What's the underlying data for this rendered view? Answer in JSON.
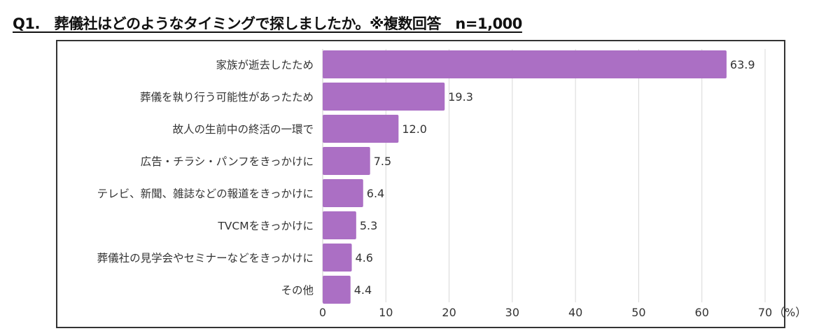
{
  "title": "Q1.　葬儀社はどのようなタイミングで探しましたか。※複数回答　n=1,000",
  "chart_data": {
    "type": "bar",
    "orientation": "horizontal",
    "categories": [
      "家族が逝去したため",
      "葬儀を執り行う可能性があったため",
      "故人の生前中の終活の一環で",
      "広告・チラシ・パンフをきっかけに",
      "テレビ、新聞、雑誌などの報道をきっかけに",
      "TVCMをきっかけに",
      "葬儀社の見学会やセミナーなどをきっかけに",
      "その他"
    ],
    "values": [
      63.9,
      19.3,
      12.0,
      7.5,
      6.4,
      5.3,
      4.6,
      4.4
    ],
    "value_labels": [
      "63.9",
      "19.3",
      "12.0",
      "7.5",
      "6.4",
      "5.3",
      "4.6",
      "4.4"
    ],
    "xlim": [
      0,
      70
    ],
    "xticks": [
      "0",
      "10",
      "20",
      "30",
      "40",
      "50",
      "60",
      "70"
    ],
    "xunit": "（%）",
    "grid": true,
    "bar_color": "#ab6fc4"
  }
}
